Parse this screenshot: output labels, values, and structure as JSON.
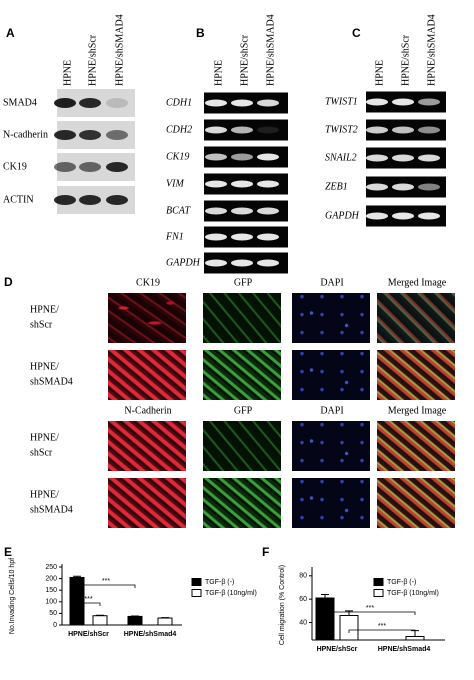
{
  "panels": {
    "A": {
      "label": "A",
      "columns": [
        "HPNE",
        "HPNE/shScr",
        "HPNE/shSMAD4"
      ],
      "rows": [
        "SMAD4",
        "N-cadherin",
        "CK19",
        "ACTIN"
      ]
    },
    "B": {
      "label": "B",
      "columns": [
        "HPNE",
        "HPNE/shScr",
        "HPNE/shSMAD4"
      ],
      "rows": [
        "CDH1",
        "CDH2",
        "CK19",
        "VIM",
        "BCAT",
        "FN1",
        "GAPDH"
      ]
    },
    "C": {
      "label": "C",
      "columns": [
        "HPNE",
        "HPNE/shScr",
        "HPNE/shSMAD4"
      ],
      "rows": [
        "TWIST1",
        "TWIST2",
        "SNAIL2",
        "ZEB1",
        "GAPDH"
      ]
    },
    "D": {
      "label": "D",
      "sections": [
        {
          "columns": [
            "CK19",
            "GFP",
            "DAPI",
            "Merged Image"
          ],
          "rows": [
            [
              "HPNE/",
              "shScr"
            ],
            [
              "HPNE/",
              "shSMAD4"
            ]
          ]
        },
        {
          "columns": [
            "N-Cadherin",
            "GFP",
            "DAPI",
            "Merged Image"
          ],
          "rows": [
            [
              "HPNE/",
              "shScr"
            ],
            [
              "HPNE/",
              "shSMAD4"
            ]
          ]
        }
      ]
    }
  },
  "chart_data": [
    {
      "type": "bar",
      "panel_label": "E",
      "y_label": "No.Invading Cells/10 hpf",
      "categories": [
        "HPNE/shScr",
        "HPNE/shSmad4"
      ],
      "series": [
        {
          "name": "TGF-β (-)",
          "color": "#000000",
          "values": [
            205,
            37
          ],
          "errors": [
            5,
            2
          ]
        },
        {
          "name": "TGF-β (10ng/ml)",
          "color": "#ffffff",
          "values": [
            40,
            30
          ],
          "errors": [
            2,
            2
          ]
        }
      ],
      "ylim": [
        0,
        250
      ],
      "yticks": [
        0,
        50,
        100,
        150,
        200,
        250
      ],
      "annotations": [
        "***",
        "***"
      ]
    },
    {
      "type": "bar",
      "panel_label": "F",
      "y_label": "Cell migration (% Control)",
      "categories": [
        "HPNE/shScr",
        "HPNE/shSmad4"
      ],
      "series": [
        {
          "name": "TGF-β (-)",
          "color": "#000000",
          "values": [
            61,
            null
          ],
          "errors": [
            3,
            null
          ]
        },
        {
          "name": "TGF-β (10ng/ml)",
          "color": "#ffffff",
          "values": [
            46,
            28
          ],
          "errors": [
            4,
            5
          ]
        }
      ],
      "ylim": [
        25,
        85
      ],
      "yticks": [
        40,
        60,
        80
      ],
      "annotations": [
        "***",
        "***"
      ]
    }
  ]
}
